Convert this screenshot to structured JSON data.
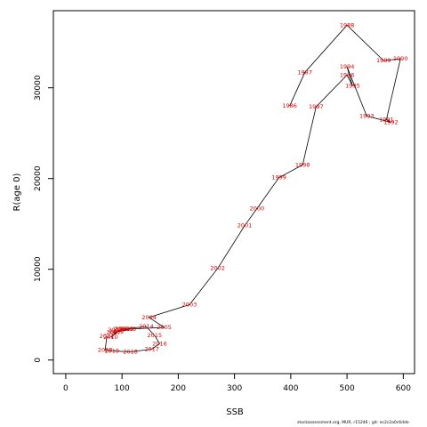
{
  "chart_data": {
    "type": "scatter",
    "title": "",
    "xlabel": "SSB",
    "ylabel": "R(age 0)",
    "xlim": [
      -22,
      620
    ],
    "ylim": [
      -1500,
      38500
    ],
    "x_ticks": [
      0,
      100,
      200,
      300,
      400,
      500,
      600
    ],
    "y_ticks": [
      0,
      10000,
      20000,
      30000
    ],
    "grid": false,
    "legend": "none",
    "line_color": "#000000",
    "label_color": "#e00000",
    "points": [
      {
        "year": "1986",
        "x": 398,
        "y": 28000
      },
      {
        "year": "1987",
        "x": 425,
        "y": 31700
      },
      {
        "year": "1988",
        "x": 500,
        "y": 36900
      },
      {
        "year": "1989",
        "x": 565,
        "y": 33000
      },
      {
        "year": "1990",
        "x": 595,
        "y": 33200
      },
      {
        "year": "1991",
        "x": 570,
        "y": 26500
      },
      {
        "year": "1992",
        "x": 578,
        "y": 26200
      },
      {
        "year": "1993",
        "x": 535,
        "y": 26900
      },
      {
        "year": "1994",
        "x": 500,
        "y": 32300
      },
      {
        "year": "1995",
        "x": 510,
        "y": 30200
      },
      {
        "year": "1996",
        "x": 500,
        "y": 31400
      },
      {
        "year": "1997",
        "x": 445,
        "y": 27900
      },
      {
        "year": "1998",
        "x": 421,
        "y": 21500
      },
      {
        "year": "1999",
        "x": 379,
        "y": 20100
      },
      {
        "year": "2000",
        "x": 340,
        "y": 16700
      },
      {
        "year": "2001",
        "x": 318,
        "y": 14800
      },
      {
        "year": "2002",
        "x": 270,
        "y": 10100
      },
      {
        "year": "2003",
        "x": 220,
        "y": 6100
      },
      {
        "year": "2004",
        "x": 148,
        "y": 4700
      },
      {
        "year": "2005",
        "x": 175,
        "y": 3600
      },
      {
        "year": "2006",
        "x": 112,
        "y": 3400
      },
      {
        "year": "2007",
        "x": 85,
        "y": 3000
      },
      {
        "year": "2008",
        "x": 88,
        "y": 3300
      },
      {
        "year": "2009",
        "x": 90,
        "y": 3100
      },
      {
        "year": "2010",
        "x": 80,
        "y": 2500
      },
      {
        "year": "2011",
        "x": 98,
        "y": 3400
      },
      {
        "year": "2012",
        "x": 108,
        "y": 3400
      },
      {
        "year": "2013",
        "x": 100,
        "y": 3400
      },
      {
        "year": "2014",
        "x": 143,
        "y": 3700
      },
      {
        "year": "2015",
        "x": 158,
        "y": 2700
      },
      {
        "year": "2016",
        "x": 167,
        "y": 1800
      },
      {
        "year": "2017",
        "x": 153,
        "y": 1200
      },
      {
        "year": "2018",
        "x": 115,
        "y": 900
      },
      {
        "year": "2019",
        "x": 82,
        "y": 1000
      },
      {
        "year": "2020",
        "x": 70,
        "y": 1100
      },
      {
        "year": "2021",
        "x": 73,
        "y": 2600
      }
    ]
  },
  "footer": "stockassessment.org, MUR, r15246 ;  git: ec2c2a0c6dde"
}
